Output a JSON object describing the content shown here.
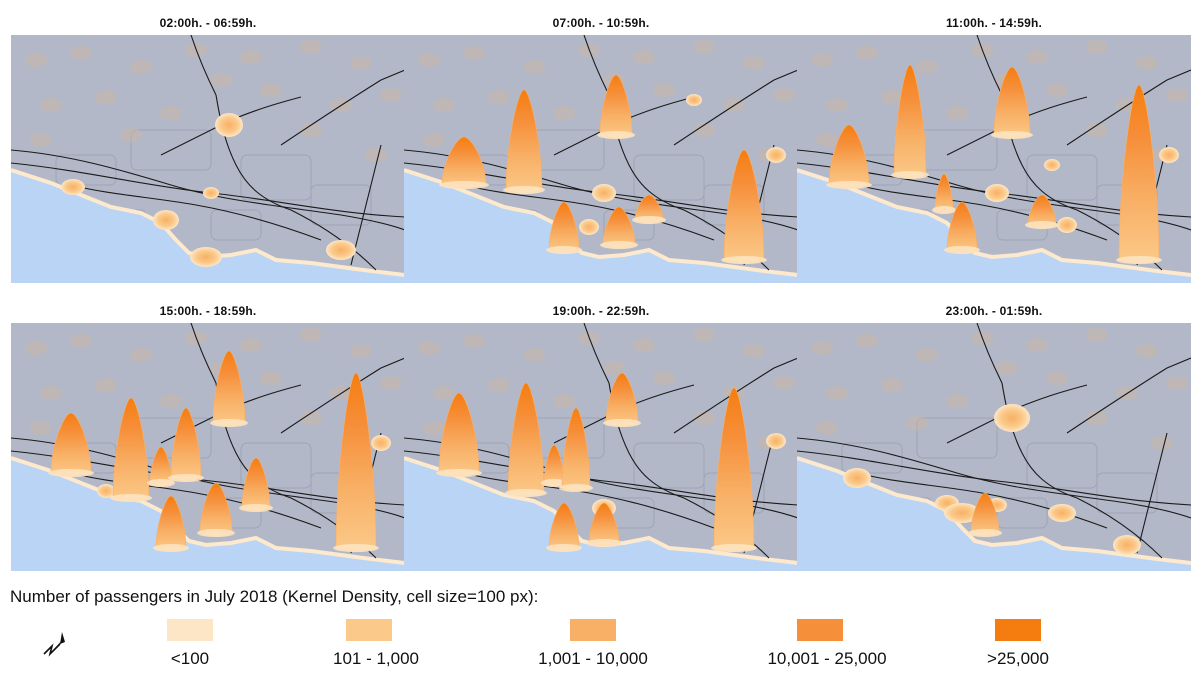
{
  "panels": [
    {
      "title": "02:00h. - 06:59h."
    },
    {
      "title": "07:00h. - 10:59h."
    },
    {
      "title": "11:00h. - 14:59h."
    },
    {
      "title": "15:00h. - 18:59h."
    },
    {
      "title": "19:00h. - 22:59h."
    },
    {
      "title": "23:00h. - 01:59h."
    }
  ],
  "legend": {
    "heading": "Number of passengers in July 2018 (Kernel Density, cell size=100 px):",
    "classes": [
      {
        "label": "<100",
        "color": "#fce6c6"
      },
      {
        "label": "101 - 1,000",
        "color": "#fbc989"
      },
      {
        "label": "1,001 - 10,000",
        "color": "#f8b066"
      },
      {
        "label": "10,001 - 25,000",
        "color": "#f68f3a"
      },
      {
        "label": ">25,000",
        "color": "#f57d10"
      }
    ]
  },
  "colors": {
    "land": "#b3b8c8",
    "sea": "#b9d4f5",
    "coast": "#fde9cd",
    "roads": "#1a1a1a"
  }
}
